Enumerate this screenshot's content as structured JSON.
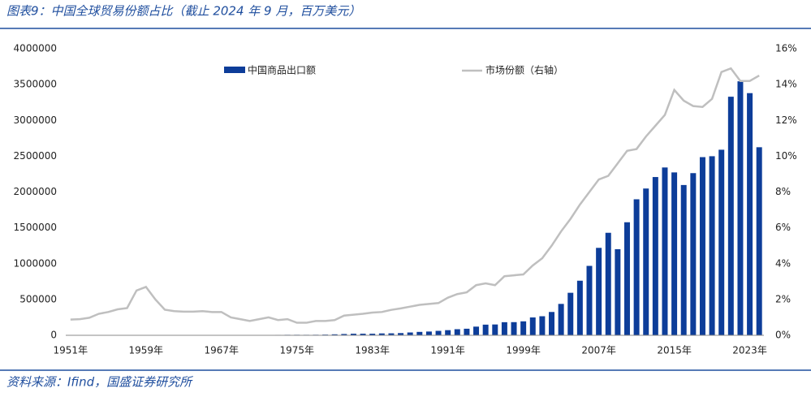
{
  "chart_data": {
    "type": "bar_line",
    "title": "图表9：中国全球贸易份额占比（截止 2024 年 9 月，百万美元）",
    "source": "资料来源：Ifind，国盛证券研究所",
    "categories": [
      "1951年",
      null,
      null,
      null,
      null,
      null,
      null,
      null,
      "1959年",
      null,
      null,
      null,
      null,
      null,
      null,
      null,
      "1967年",
      null,
      null,
      null,
      null,
      null,
      null,
      null,
      "1975年",
      null,
      null,
      null,
      null,
      null,
      null,
      null,
      "1983年",
      null,
      null,
      null,
      null,
      null,
      null,
      null,
      "1991年",
      null,
      null,
      null,
      null,
      null,
      null,
      null,
      "1999年",
      null,
      null,
      null,
      null,
      null,
      null,
      null,
      "2007年",
      null,
      null,
      null,
      null,
      null,
      null,
      null,
      "2015年",
      null,
      null,
      null,
      null,
      null,
      null,
      null,
      "2023年",
      null
    ],
    "series": [
      {
        "name": "中国商品出口额",
        "color": "#0d3d99",
        "values": [
          758,
          823,
          1022,
          1146,
          1412,
          1645,
          1597,
          1981,
          2261,
          1856,
          1491,
          1490,
          1650,
          1916,
          2228,
          2366,
          2135,
          2103,
          2204,
          2260,
          2636,
          3443,
          5819,
          6949,
          7264,
          6855,
          7590,
          9750,
          13660,
          18120,
          22010,
          22320,
          22230,
          26140,
          27350,
          30940,
          39440,
          47520,
          52540,
          62090,
          71840,
          84940,
          91740,
          121010,
          148780,
          151050,
          182790,
          183710,
          194930,
          249200,
          266100,
          325600,
          438230,
          593330,
          761950,
          968980,
          1220460,
          1430690,
          1201610,
          1577750,
          1898380,
          2048710,
          2209000,
          2342300,
          2273470,
          2097630,
          2263370,
          2486700,
          2499480,
          2590000,
          3330000,
          3545000,
          3380000,
          2625000
        ]
      },
      {
        "name": "市场份额（右轴）",
        "color": "#bfbfbf",
        "axis": "y2",
        "values": [
          0.88,
          0.9,
          0.98,
          1.2,
          1.3,
          1.45,
          1.52,
          2.5,
          2.7,
          2.0,
          1.43,
          1.35,
          1.32,
          1.32,
          1.35,
          1.3,
          1.3,
          1.0,
          0.9,
          0.8,
          0.9,
          1.0,
          0.85,
          0.9,
          0.7,
          0.7,
          0.8,
          0.8,
          0.85,
          1.1,
          1.15,
          1.2,
          1.27,
          1.3,
          1.42,
          1.5,
          1.6,
          1.7,
          1.75,
          1.8,
          2.1,
          2.3,
          2.4,
          2.8,
          2.9,
          2.8,
          3.3,
          3.35,
          3.4,
          3.9,
          4.3,
          5.0,
          5.8,
          6.5,
          7.3,
          8.0,
          8.7,
          8.9,
          9.6,
          10.3,
          10.4,
          11.1,
          11.7,
          12.3,
          13.7,
          13.1,
          12.8,
          12.75,
          13.2,
          14.7,
          14.9,
          14.2,
          14.2,
          14.5
        ]
      }
    ],
    "ylim": [
      0,
      4000000
    ],
    "yticks": [
      0,
      500000,
      1000000,
      1500000,
      2000000,
      2500000,
      3000000,
      3500000,
      4000000
    ],
    "y2lim": [
      0,
      16
    ],
    "y2ticks": [
      {
        "value": 0,
        "label": "0%"
      },
      {
        "value": 2,
        "label": "2%"
      },
      {
        "value": 4,
        "label": "4%"
      },
      {
        "value": 6,
        "label": "6%"
      },
      {
        "value": 8,
        "label": "8%"
      },
      {
        "value": 10,
        "label": "10%"
      },
      {
        "value": 12,
        "label": "12%"
      },
      {
        "value": 14,
        "label": "14%"
      },
      {
        "value": 16,
        "label": "16%"
      }
    ],
    "grid": false
  }
}
